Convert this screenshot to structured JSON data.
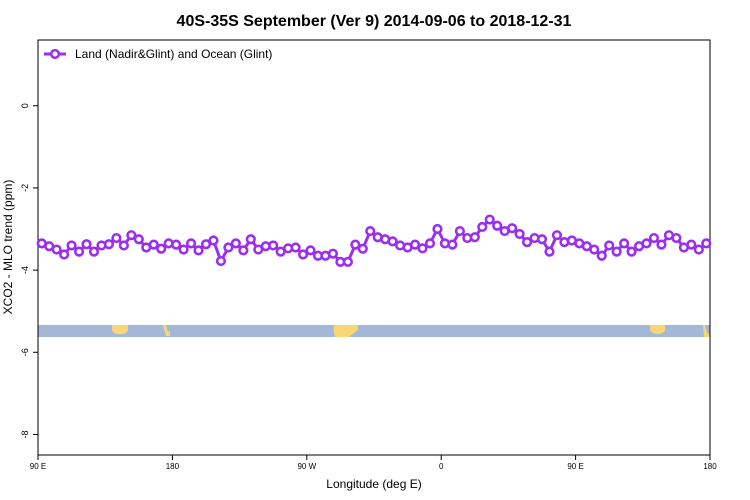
{
  "chart_data": {
    "type": "line",
    "title": "40S-35S September (Ver 9)   2014-09-06 to 2018-12-31",
    "x_label": "Longitude (deg E)",
    "y_label": "XCO2 - MLO trend (ppm)",
    "xlim": [
      90,
      540
    ],
    "ylim": [
      -8.5,
      1.6
    ],
    "xticks": [
      {
        "value": 90,
        "label": "90 E"
      },
      180,
      {
        "value": 270,
        "label": "90 W"
      },
      {
        "value": 360,
        "label": "0"
      },
      {
        "value": 450,
        "label": "90 E"
      },
      {
        "value": 540,
        "label": "180"
      }
    ],
    "yticks": [
      0,
      -2,
      -4,
      -6,
      -8
    ],
    "legend": "upper left",
    "x": [
      92.5,
      97.5,
      102.5,
      107.5,
      112.5,
      117.5,
      122.5,
      127.5,
      132.5,
      137.5,
      142.5,
      147.5,
      152.5,
      157.5,
      162.5,
      167.5,
      172.5,
      177.5,
      182.5,
      187.5,
      192.5,
      197.5,
      202.5,
      207.5,
      212.5,
      217.5,
      222.5,
      227.5,
      232.5,
      237.5,
      242.5,
      247.5,
      252.5,
      257.5,
      262.5,
      267.5,
      272.5,
      277.5,
      282.5,
      287.5,
      292.5,
      297.5,
      302.5,
      307.5,
      312.5,
      317.5,
      322.5,
      327.5,
      332.5,
      337.5,
      342.5,
      347.5,
      352.5,
      357.5,
      362.5,
      367.5,
      372.5,
      377.5,
      382.5,
      387.5,
      392.5,
      397.5,
      402.5,
      407.5,
      412.5,
      417.5,
      422.5,
      427.5,
      432.5,
      437.5,
      442.5,
      447.5,
      452.5,
      457.5,
      462.5,
      467.5,
      472.5,
      477.5,
      482.5,
      487.5,
      492.5,
      497.5,
      502.5,
      507.5,
      512.5,
      517.5,
      522.5,
      527.5,
      532.5,
      537.5
    ],
    "series": [
      {
        "name": "Land (Nadir&Glint) and Ocean (Glint)",
        "color": "#9b2ff0",
        "values": [
          -3.35,
          -3.42,
          -3.5,
          -3.62,
          -3.4,
          -3.55,
          -3.37,
          -3.55,
          -3.4,
          -3.37,
          -3.22,
          -3.4,
          -3.15,
          -3.25,
          -3.45,
          -3.38,
          -3.48,
          -3.35,
          -3.38,
          -3.5,
          -3.35,
          -3.52,
          -3.37,
          -3.28,
          -3.78,
          -3.45,
          -3.35,
          -3.52,
          -3.25,
          -3.5,
          -3.42,
          -3.4,
          -3.55,
          -3.47,
          -3.45,
          -3.62,
          -3.52,
          -3.65,
          -3.65,
          -3.6,
          -3.8,
          -3.8,
          -3.38,
          -3.48,
          -3.05,
          -3.2,
          -3.25,
          -3.3,
          -3.4,
          -3.45,
          -3.38,
          -3.47,
          -3.35,
          -3.0,
          -3.35,
          -3.38,
          -3.05,
          -3.22,
          -3.2,
          -2.95,
          -2.77,
          -2.92,
          -3.05,
          -2.98,
          -3.12,
          -3.32,
          -3.22,
          -3.25,
          -3.55,
          -3.15,
          -3.32,
          -3.28,
          -3.35,
          -3.42,
          -3.5,
          -3.65,
          -3.4,
          -3.55,
          -3.35,
          -3.55,
          -3.42,
          -3.35,
          -3.22,
          -3.38,
          -3.15,
          -3.22,
          -3.45,
          -3.38,
          -3.5,
          -3.35
        ]
      }
    ]
  }
}
